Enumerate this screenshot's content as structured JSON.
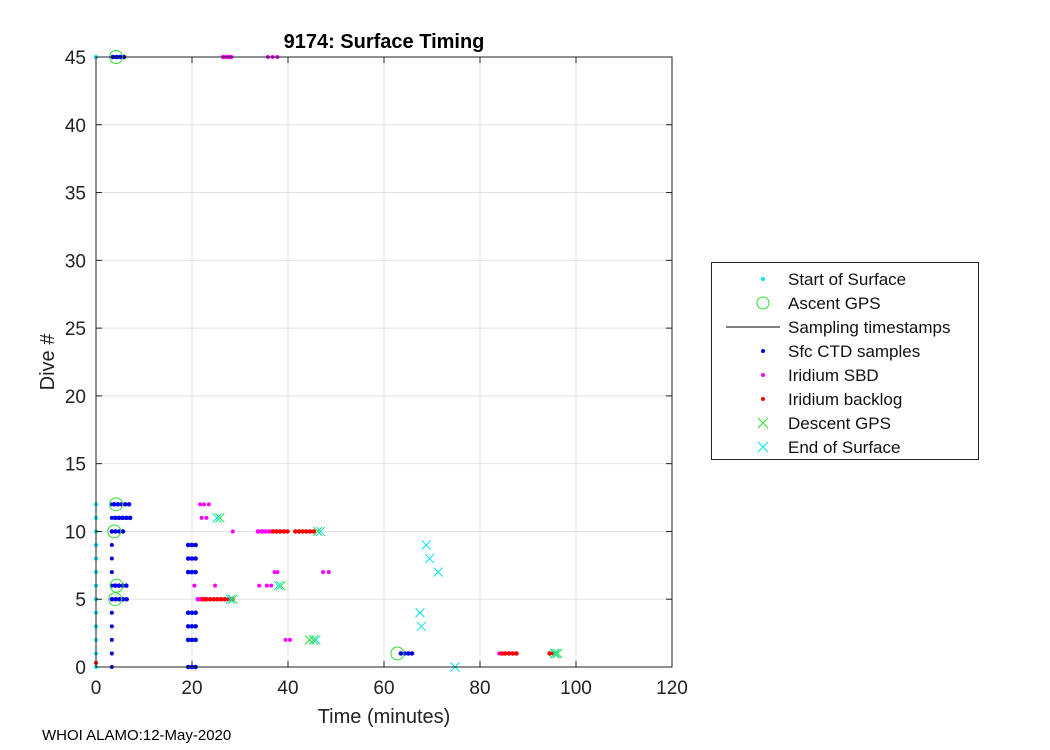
{
  "chart_data": {
    "type": "scatter",
    "title": "9174: Surface Timing",
    "xlabel": "Time (minutes)",
    "ylabel": "Dive #",
    "xlim": [
      0,
      120
    ],
    "ylim": [
      0,
      45
    ],
    "xticks": [
      0,
      20,
      40,
      60,
      80,
      100,
      120
    ],
    "yticks": [
      0,
      5,
      10,
      15,
      20,
      25,
      30,
      35,
      40,
      45
    ],
    "grid": true,
    "legend_position": "outside-right",
    "legend": [
      {
        "name": "Start of Surface",
        "marker": "dot",
        "color": "#00e5ee"
      },
      {
        "name": "Ascent GPS",
        "marker": "circle",
        "color": "#33dd33"
      },
      {
        "name": "Sampling timestamps",
        "marker": "line",
        "color": "#000000"
      },
      {
        "name": "Sfc CTD samples",
        "marker": "dot",
        "color": "#0000ee"
      },
      {
        "name": "Iridium SBD",
        "marker": "dot",
        "color": "#ff00ff"
      },
      {
        "name": "Iridium backlog",
        "marker": "dot",
        "color": "#ff0000"
      },
      {
        "name": "Descent GPS",
        "marker": "x",
        "color": "#33dd33"
      },
      {
        "name": "End of Surface",
        "marker": "x",
        "color": "#00e5ee"
      }
    ],
    "series": {
      "start_of_surface": [
        [
          0,
          0
        ],
        [
          0,
          1
        ],
        [
          0,
          2
        ],
        [
          0,
          3
        ],
        [
          0,
          4
        ],
        [
          0,
          5
        ],
        [
          0,
          6
        ],
        [
          0,
          7
        ],
        [
          0,
          8
        ],
        [
          0,
          9
        ],
        [
          0,
          10
        ],
        [
          0,
          11
        ],
        [
          0,
          12
        ],
        [
          0,
          45
        ]
      ],
      "ascent_gps": [
        [
          4,
          5
        ],
        [
          4.3,
          6
        ],
        [
          3.8,
          10
        ],
        [
          4.2,
          12
        ],
        [
          4.2,
          45
        ],
        [
          62.8,
          1
        ]
      ],
      "sfc_ctd_ranges": [
        [
          0,
          19.2,
          21.2
        ],
        [
          0,
          3.3,
          3.3
        ],
        [
          1,
          3.3,
          3.3
        ],
        [
          1,
          63.5,
          66.5
        ],
        [
          2,
          19.2,
          21.2
        ],
        [
          2,
          3.3,
          3.3
        ],
        [
          3,
          19.2,
          21.2
        ],
        [
          3,
          3.3,
          3.3
        ],
        [
          4,
          19.2,
          21.2
        ],
        [
          4,
          3.3,
          3.3
        ],
        [
          5,
          3.3,
          7
        ],
        [
          6,
          4,
          7
        ],
        [
          6,
          3.3,
          3.3
        ],
        [
          7,
          19.2,
          21.2
        ],
        [
          7,
          3.3,
          3.3
        ],
        [
          8,
          19.2,
          21.2
        ],
        [
          8,
          3.3,
          3.3
        ],
        [
          9,
          19.2,
          21.2
        ],
        [
          9,
          3.3,
          3.3
        ],
        [
          10,
          3.3,
          6.2
        ],
        [
          11,
          4,
          7.5
        ],
        [
          11,
          3.3,
          3.3
        ],
        [
          12,
          3.8,
          7
        ],
        [
          12,
          3.3,
          3.3
        ],
        [
          45,
          3.5,
          6.5
        ]
      ],
      "iridium_sbd": [
        [
          20.5,
          6
        ],
        [
          24.8,
          6
        ],
        [
          21.5,
          5
        ],
        [
          22.5,
          5
        ],
        [
          39.5,
          2
        ],
        [
          40.4,
          2
        ],
        [
          34,
          6
        ],
        [
          35.6,
          6
        ],
        [
          36.5,
          6
        ],
        [
          37.2,
          7
        ],
        [
          37.8,
          7
        ],
        [
          47.3,
          7
        ],
        [
          48.5,
          7
        ],
        [
          22,
          11
        ],
        [
          23,
          11
        ],
        [
          21.7,
          12
        ],
        [
          22.5,
          12
        ],
        [
          23.5,
          12
        ],
        [
          28.5,
          10
        ],
        [
          33.7,
          10
        ],
        [
          35,
          10
        ],
        [
          36,
          10
        ],
        [
          26.5,
          45
        ],
        [
          27.5,
          45
        ],
        [
          28.2,
          45
        ],
        [
          35.8,
          45
        ],
        [
          36.8,
          45
        ],
        [
          37.8,
          45
        ],
        [
          84,
          1
        ],
        [
          85,
          1
        ],
        [
          86,
          1
        ]
      ],
      "iridium_sbd_ranges": [
        [
          5,
          21.2,
          22.8
        ],
        [
          10,
          33.8,
          37
        ],
        [
          45,
          26.5,
          28.5
        ]
      ],
      "iridium_backlog_ranges": [
        [
          5,
          22.2,
          28.5
        ],
        [
          10,
          36.8,
          40.5
        ],
        [
          10,
          41.5,
          45.5
        ],
        [
          1,
          84.5,
          88
        ],
        [
          1,
          94.5,
          95.8
        ]
      ],
      "iridium_backlog": [
        [
          0,
          0.3
        ]
      ],
      "descent_gps": [
        [
          28.5,
          5
        ],
        [
          38.5,
          6
        ],
        [
          44.5,
          2
        ],
        [
          45.3,
          2
        ],
        [
          46.2,
          10
        ],
        [
          25.8,
          11
        ],
        [
          95.5,
          1
        ],
        [
          96.2,
          1
        ]
      ],
      "end_of_surface": [
        [
          28,
          5
        ],
        [
          38,
          6
        ],
        [
          45.8,
          2
        ],
        [
          46.8,
          10
        ],
        [
          25.2,
          11
        ],
        [
          67.5,
          4
        ],
        [
          67.8,
          3
        ],
        [
          68.8,
          9
        ],
        [
          69.5,
          8
        ],
        [
          71.3,
          7
        ],
        [
          74.8,
          0
        ],
        [
          95.8,
          1
        ]
      ]
    }
  },
  "footer": "WHOI ALAMO:12-May-2020"
}
